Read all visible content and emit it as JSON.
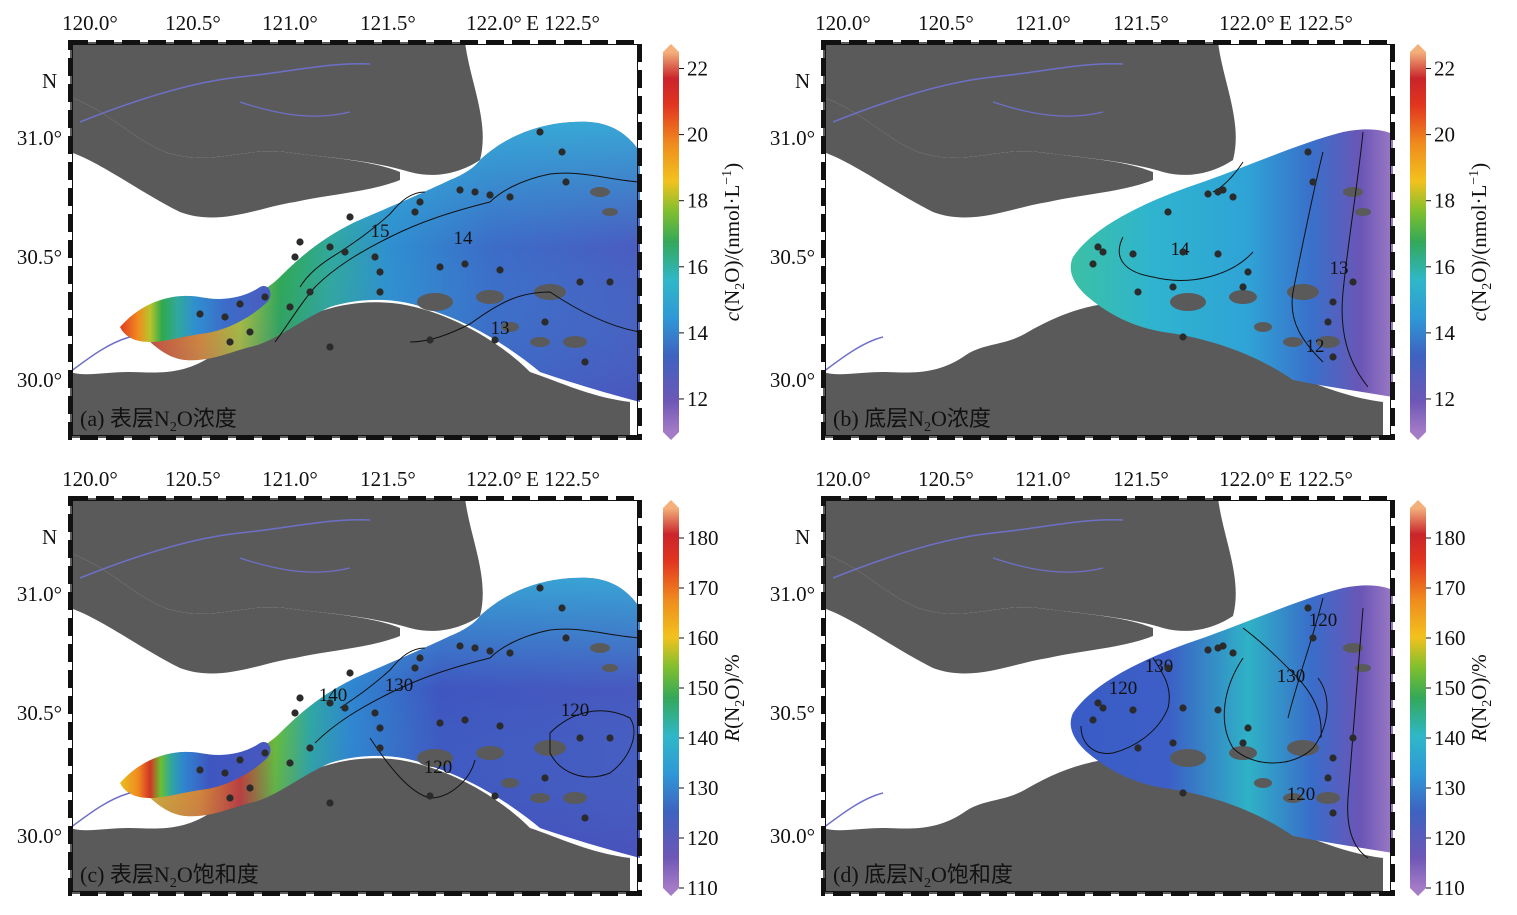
{
  "common": {
    "lon_labels": [
      "120.0°",
      "120.5°",
      "121.0°",
      "121.5°",
      "122.0°",
      "E 122.5°"
    ],
    "lat_labels": [
      "31.0°",
      "30.5°",
      "30.0°"
    ],
    "north_label": "N",
    "colors": {
      "land": "#5a5a5a",
      "river": "#6e70c8",
      "dot": "#2b2b2b"
    }
  },
  "panels": [
    {
      "id": "a",
      "label_prefix": "(a) 表层N",
      "label_sub": "2",
      "label_suffix": "O浓度",
      "contours": [
        "15",
        "14",
        "13"
      ],
      "colorbar": {
        "ticks": [
          "22",
          "20",
          "18",
          "16",
          "14",
          "12"
        ],
        "min": 11,
        "max": 22.5,
        "title_pre": "c(N",
        "title_sub": "2",
        "title_mid": "O)/(nmol·L",
        "title_sup": "−1",
        "title_end": ")"
      }
    },
    {
      "id": "b",
      "label_prefix": "(b) 底层N",
      "label_sub": "2",
      "label_suffix": "O浓度",
      "contours": [
        "14",
        "13",
        "12"
      ],
      "colorbar": {
        "ticks": [
          "22",
          "20",
          "18",
          "16",
          "14",
          "12"
        ],
        "min": 11,
        "max": 22.5,
        "title_pre": "c(N",
        "title_sub": "2",
        "title_mid": "O)/(nmol·L",
        "title_sup": "−1",
        "title_end": ")"
      }
    },
    {
      "id": "c",
      "label_prefix": "(c) 表层N",
      "label_sub": "2",
      "label_suffix": "O饱和度",
      "contours": [
        "140",
        "130",
        "120",
        "120"
      ],
      "colorbar": {
        "ticks": [
          "180",
          "170",
          "160",
          "150",
          "140",
          "130",
          "120",
          "110"
        ],
        "min": 110,
        "max": 186,
        "title_pre": "R(N",
        "title_sub": "2",
        "title_mid": "O)/%",
        "title_sup": "",
        "title_end": ""
      }
    },
    {
      "id": "d",
      "label_prefix": "(d) 底层N",
      "label_sub": "2",
      "label_suffix": "O饱和度",
      "contours": [
        "120",
        "130",
        "130",
        "120",
        "120"
      ],
      "colorbar": {
        "ticks": [
          "180",
          "170",
          "160",
          "150",
          "140",
          "130",
          "120",
          "110"
        ],
        "min": 110,
        "max": 186,
        "title_pre": "R(N",
        "title_sub": "2",
        "title_mid": "O)/%",
        "title_sup": "",
        "title_end": ""
      }
    }
  ]
}
